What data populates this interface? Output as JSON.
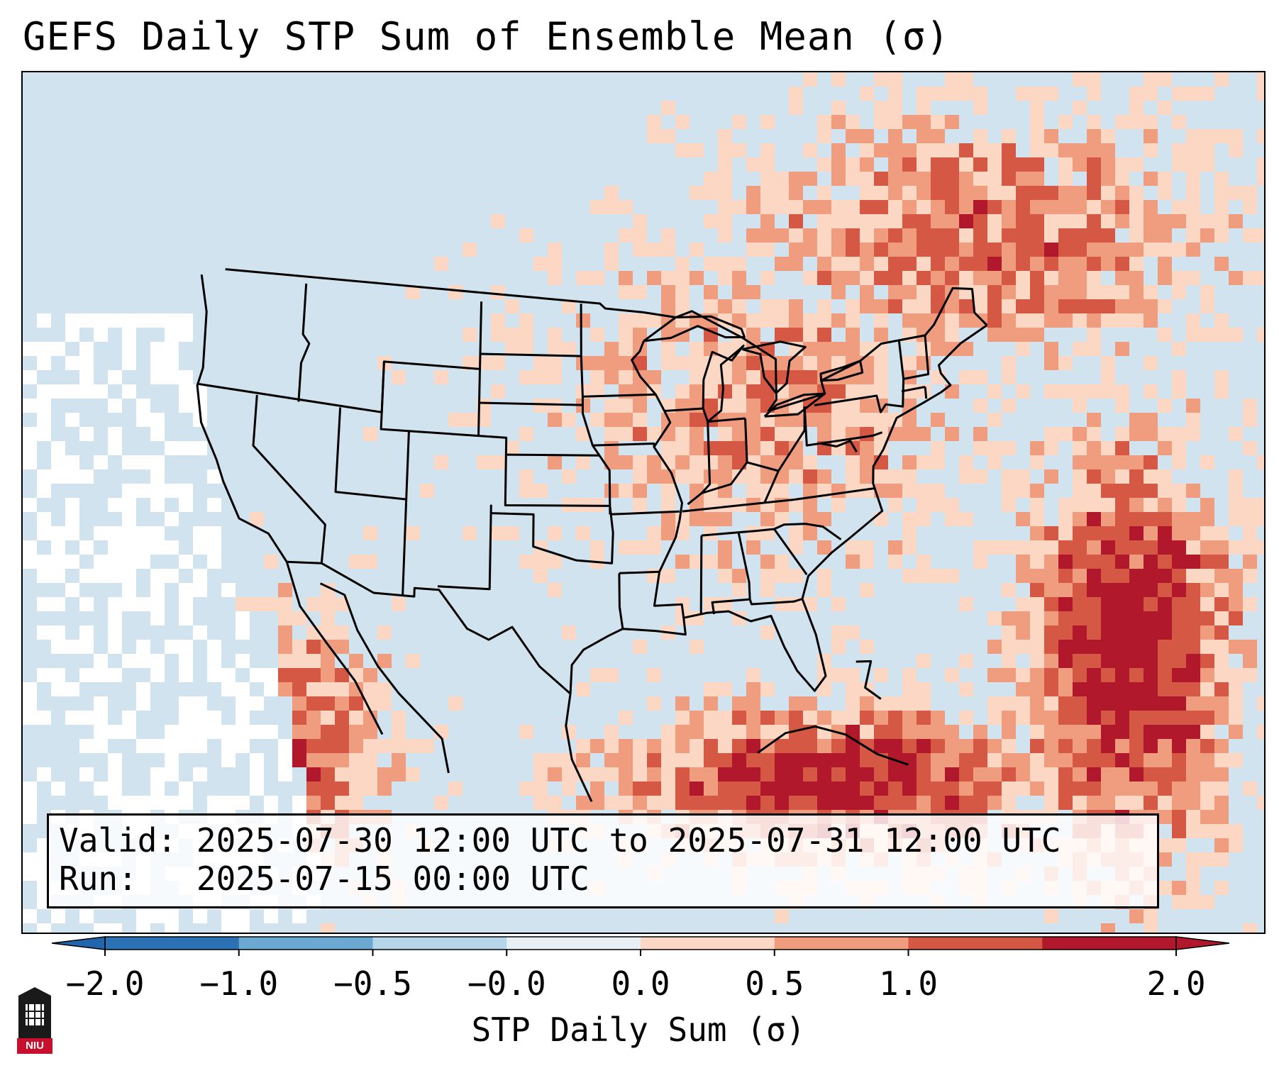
{
  "title": "GEFS Daily STP Sum of Ensemble Mean (σ)",
  "info": {
    "valid_label": "Valid:",
    "valid_value": "2025-07-30 12:00 UTC to 2025-07-31 12:00 UTC",
    "run_label": "Run:",
    "run_value": "2025-07-15 00:00 UTC"
  },
  "colorbar": {
    "label": "STP Daily Sum (σ)",
    "ticks": [
      "−2.0",
      "−1.0",
      "−0.5",
      "−0.0",
      "0.0",
      "0.5",
      "1.0",
      "2.0"
    ],
    "colors": [
      "#2b71b3",
      "#6ba9d3",
      "#b5d6e8",
      "#e8f0f5",
      "#fbd7c4",
      "#f09c7f",
      "#d55845",
      "#b2182b"
    ],
    "extend_low_color": "#2166ac",
    "extend_high_color": "#b2182b"
  },
  "map_colors": {
    "background": "#d1e3ef",
    "land_neutral": "#d1e3ef",
    "white_bin": "#ffffff",
    "light_red": "#fbd7c4",
    "mid_red": "#f09c7f",
    "strong_red": "#d55845",
    "dark_red": "#b2182b",
    "light_blue": "#6ba9d3",
    "border": "#000000"
  },
  "logo": {
    "text": "NIU"
  }
}
